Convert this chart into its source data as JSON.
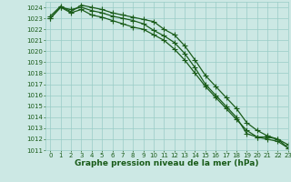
{
  "x": [
    0,
    1,
    2,
    3,
    4,
    5,
    6,
    7,
    8,
    9,
    10,
    11,
    12,
    13,
    14,
    15,
    16,
    17,
    18,
    19,
    20,
    21,
    22,
    23
  ],
  "line1": [
    1023.0,
    1024.0,
    1023.8,
    1024.0,
    1023.7,
    1023.5,
    1023.2,
    1023.0,
    1022.8,
    1022.5,
    1021.9,
    1021.4,
    1020.8,
    1019.8,
    1018.5,
    1017.0,
    1016.0,
    1015.0,
    1014.0,
    1012.5,
    1012.2,
    1012.2,
    1012.0,
    1011.2
  ],
  "line2": [
    1023.2,
    1024.1,
    1023.6,
    1024.2,
    1024.0,
    1023.8,
    1023.5,
    1023.3,
    1023.1,
    1022.9,
    1022.7,
    1022.0,
    1021.5,
    1020.5,
    1019.2,
    1017.8,
    1016.8,
    1015.8,
    1014.8,
    1013.5,
    1012.8,
    1012.3,
    1012.0,
    1011.5
  ],
  "line3": [
    1023.0,
    1024.0,
    1023.5,
    1023.8,
    1023.3,
    1023.1,
    1022.8,
    1022.5,
    1022.2,
    1022.0,
    1021.5,
    1021.0,
    1020.2,
    1019.2,
    1018.0,
    1016.8,
    1015.8,
    1014.8,
    1013.8,
    1012.8,
    1012.2,
    1012.0,
    1011.8,
    1011.2
  ],
  "ylim_min": 1011,
  "ylim_max": 1024.5,
  "xlim_min": -0.5,
  "xlim_max": 23,
  "yticks": [
    1011,
    1012,
    1013,
    1014,
    1015,
    1016,
    1017,
    1018,
    1019,
    1020,
    1021,
    1022,
    1023,
    1024
  ],
  "xticks": [
    0,
    1,
    2,
    3,
    4,
    5,
    6,
    7,
    8,
    9,
    10,
    11,
    12,
    13,
    14,
    15,
    16,
    17,
    18,
    19,
    20,
    21,
    22,
    23
  ],
  "xlabel": "Graphe pression niveau de la mer (hPa)",
  "bg_color": "#cce8e4",
  "grid_color": "#99ccc6",
  "line_color": "#1a5c1a",
  "marker": "+",
  "markersize": 4,
  "linewidth": 0.9,
  "tick_fontsize": 5,
  "label_fontsize": 6.5
}
